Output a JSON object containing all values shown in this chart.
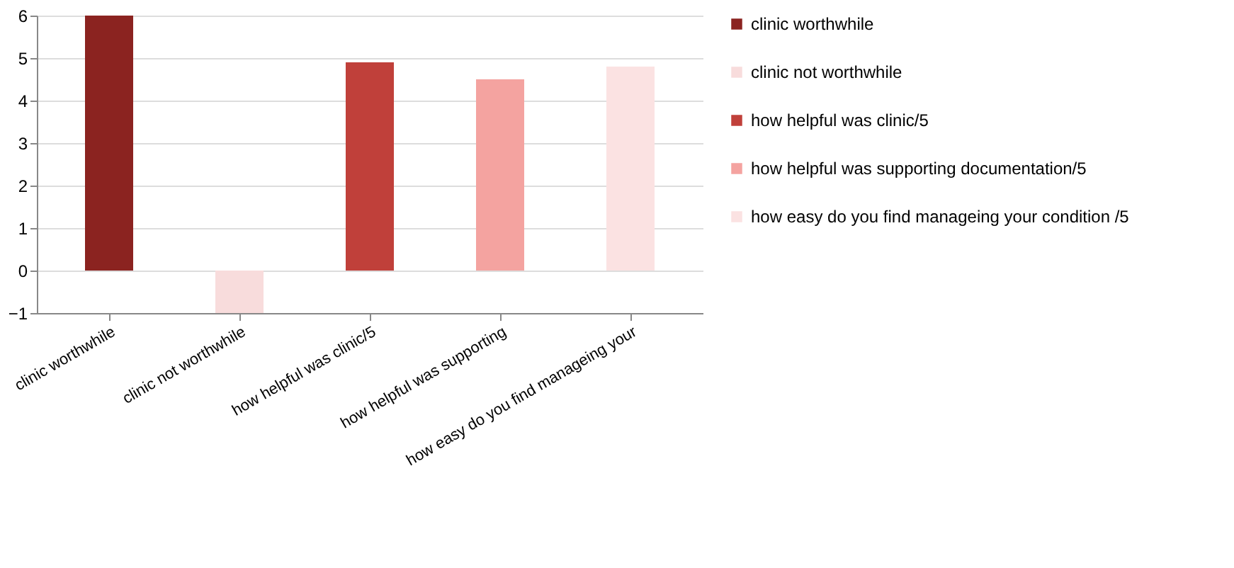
{
  "chart_data": {
    "type": "bar",
    "categories": [
      "clinic worthwhile",
      "clinic not worthwhile",
      "how helpful was clinic/5",
      "how helpful was supporting",
      "how easy do you find manageing your"
    ],
    "series": [
      {
        "name": "clinic worthwhile",
        "color": "#8b2320",
        "values": [
          6,
          null,
          null,
          null,
          null
        ]
      },
      {
        "name": "clinic not worthwhile",
        "color": "#f8dcdc",
        "values": [
          null,
          -1,
          null,
          null,
          null
        ]
      },
      {
        "name": "how helpful was clinic/5",
        "color": "#c0403a",
        "values": [
          null,
          null,
          4.9,
          null,
          null
        ]
      },
      {
        "name": "how helpful was supporting documentation/5",
        "color": "#f4a3a0",
        "values": [
          null,
          null,
          null,
          4.5,
          null
        ]
      },
      {
        "name": "how easy do you find manageing your condition /5",
        "color": "#fbe2e2",
        "values": [
          null,
          null,
          null,
          null,
          4.8
        ]
      }
    ],
    "ylim": [
      -1,
      6
    ],
    "yticks": [
      -1,
      0,
      1,
      2,
      3,
      4,
      5,
      6
    ],
    "grid": "y",
    "legend": "right"
  }
}
